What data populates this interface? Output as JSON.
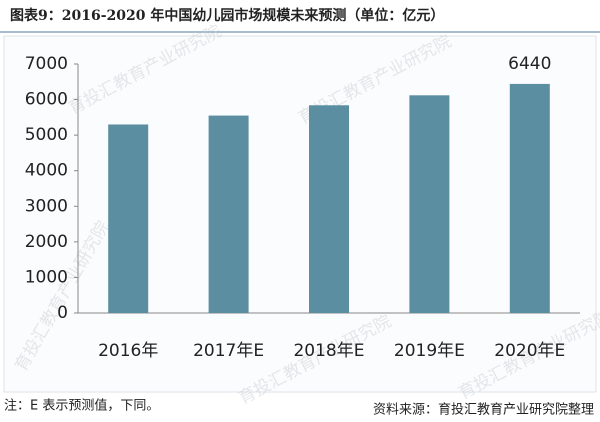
{
  "chart_data": {
    "type": "bar",
    "title": "图表9：2016-2020 年中国幼儿园市场规模未来预测（单位：亿元）",
    "categories": [
      "2016年",
      "2017年E",
      "2018年E",
      "2019年E",
      "2020年E"
    ],
    "values": [
      5300,
      5550,
      5840,
      6120,
      6440
    ],
    "value_labels": [
      null,
      null,
      null,
      null,
      "6440"
    ],
    "color": "#5b8ea1",
    "ylim": [
      0,
      7000
    ],
    "yticks": [
      0,
      1000,
      2000,
      3000,
      4000,
      5000,
      6000,
      7000
    ],
    "grid": false,
    "note": "注：E 表示预测值，下同。",
    "source": "资料来源：育投汇教育产业研究院整理",
    "watermark": "育投汇教育产业研究院"
  }
}
